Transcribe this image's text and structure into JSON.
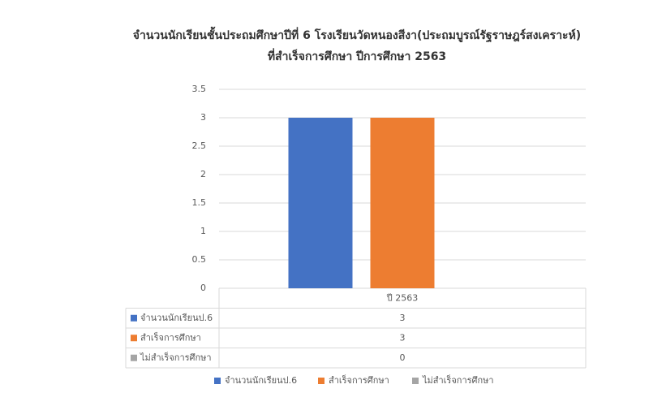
{
  "chart_data": {
    "type": "bar",
    "title": [
      "จำนวนนักเรียนชั้นประถมศึกษาปีที่ 6 โรงเรียนวัดหนองสีงา(ประถมบูรณ์รัฐราษฎร์สงเคราะห์)",
      "ที่สำเร็จการศึกษา ปีการศึกษา 2563"
    ],
    "categories": [
      "ปี 2563"
    ],
    "series": [
      {
        "name": "จำนวนนักเรียนป.6",
        "color": "#4472c4",
        "values": [
          3
        ]
      },
      {
        "name": "สำเร็จการศึกษา",
        "color": "#ed7d31",
        "values": [
          3
        ]
      },
      {
        "name": "ไม่สำเร็จการศึกษา",
        "color": "#a5a5a5",
        "values": [
          0
        ]
      }
    ],
    "ylim": [
      0,
      3.5
    ],
    "yticks": [
      0,
      0.5,
      1,
      1.5,
      2,
      2.5,
      3,
      3.5
    ],
    "grid": true,
    "legend": "bottom"
  }
}
